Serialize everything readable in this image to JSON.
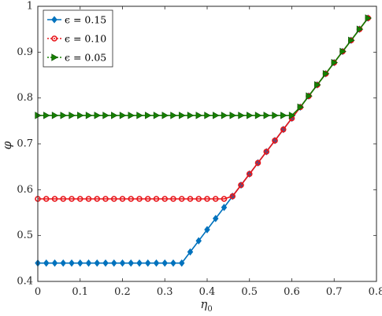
{
  "chart_data": {
    "type": "line",
    "xlabel_main": "η",
    "xlabel_sub": "0",
    "ylabel": "φ",
    "xlim": [
      0,
      0.8
    ],
    "ylim": [
      0.4,
      1.0
    ],
    "xticks": [
      "0",
      "0.1",
      "0.2",
      "0.3",
      "0.4",
      "0.5",
      "0.6",
      "0.7",
      "0.8"
    ],
    "yticks": [
      "0.4",
      "0.5",
      "0.6",
      "0.7",
      "0.8",
      "0.9",
      "1"
    ],
    "grid": false,
    "legend_position": "top-left",
    "x_step": 0.02,
    "x_end": 0.78,
    "diagonal": {
      "start_x": 0.34,
      "start_y": 0.44,
      "slope": 1.2143
    },
    "series": [
      {
        "name": "ϵ = 0.15",
        "plateau": 0.44,
        "color": "#0072BD",
        "marker": "diamond"
      },
      {
        "name": "ϵ = 0.10",
        "plateau": 0.58,
        "color": "#E8161B",
        "marker": "circle"
      },
      {
        "name": "ϵ = 0.05",
        "plateau": 0.762,
        "color": "#168000",
        "marker": "triangle-right"
      }
    ]
  }
}
